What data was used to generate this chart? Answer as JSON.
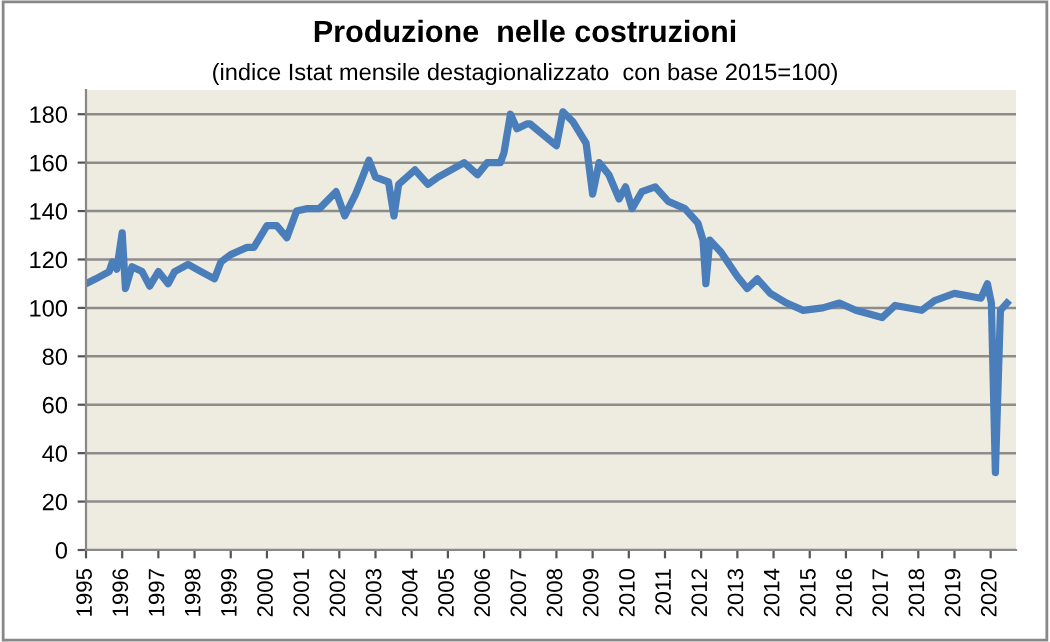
{
  "chart_data": {
    "type": "line",
    "title": "Produzione  nelle costruzioni",
    "subtitle": "(indice Istat mensile destagionalizzato  con base 2015=100)",
    "series": [
      {
        "color": "#4a7ebb",
        "x": [
          1995.0,
          1995.27,
          1995.64,
          1995.73,
          1995.85,
          1996.0,
          1996.09,
          1996.27,
          1996.55,
          1996.76,
          1997.0,
          1997.27,
          1997.45,
          1997.82,
          1998.18,
          1998.55,
          1998.73,
          1999.0,
          1999.45,
          1999.64,
          2000.0,
          2000.27,
          2000.55,
          2000.82,
          2001.09,
          2001.45,
          2001.91,
          2002.15,
          2002.45,
          2002.64,
          2002.82,
          2003.0,
          2003.36,
          2003.51,
          2003.64,
          2004.09,
          2004.45,
          2004.73,
          2005.09,
          2005.45,
          2005.82,
          2006.09,
          2006.45,
          2006.55,
          2006.73,
          2006.91,
          2007.18,
          2007.27,
          2008.0,
          2008.18,
          2008.45,
          2008.82,
          2009.0,
          2009.18,
          2009.45,
          2009.73,
          2009.91,
          2010.09,
          2010.36,
          2010.73,
          2011.09,
          2011.55,
          2011.91,
          2012.05,
          2012.13,
          2012.24,
          2012.55,
          2013.0,
          2013.27,
          2013.55,
          2013.91,
          2014.36,
          2014.82,
          2015.36,
          2015.82,
          2016.27,
          2017.0,
          2017.36,
          2018.09,
          2018.45,
          2019.0,
          2019.73,
          2019.91,
          2020.02,
          2020.13,
          2020.27,
          2020.45
        ],
        "values": [
          110,
          112,
          115,
          119,
          116,
          131,
          108,
          117,
          115,
          109,
          115,
          110,
          115,
          118,
          115,
          112,
          119,
          122,
          125,
          125,
          134,
          134,
          129,
          140,
          141,
          141,
          148,
          138,
          147,
          154,
          161,
          154,
          152,
          138,
          151,
          157,
          151,
          154,
          157,
          160,
          155,
          160,
          160,
          164,
          180,
          174,
          176,
          176,
          167,
          181,
          177,
          168,
          147,
          160,
          155,
          145,
          150,
          141,
          148,
          150,
          144,
          141,
          135,
          128,
          110,
          128,
          123,
          113,
          108,
          112,
          106,
          102,
          99,
          100,
          102,
          99,
          96,
          101,
          99,
          103,
          106,
          104,
          110,
          102,
          32,
          99,
          102
        ]
      }
    ],
    "xlim": [
      1995,
      2020.7
    ],
    "xticks": [
      1995,
      1996,
      1997,
      1998,
      1999,
      2000,
      2001,
      2002,
      2003,
      2004,
      2005,
      2006,
      2007,
      2008,
      2009,
      2010,
      2011,
      2012,
      2013,
      2014,
      2015,
      2016,
      2017,
      2018,
      2019,
      2020
    ],
    "ylim": [
      0,
      190
    ],
    "yticks": [
      0,
      20,
      40,
      60,
      80,
      100,
      120,
      140,
      160,
      180
    ],
    "grid": "y",
    "legend": false,
    "marker": "none",
    "line_style": "solid"
  }
}
